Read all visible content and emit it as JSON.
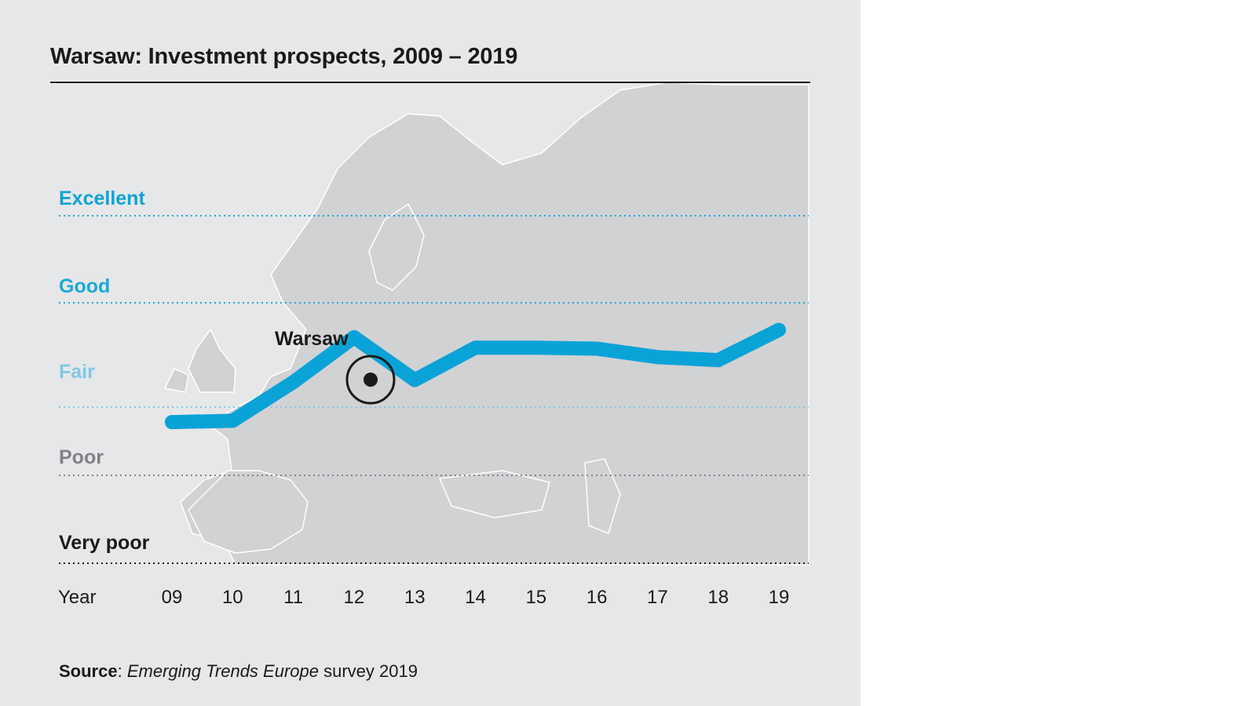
{
  "chart_data": {
    "type": "line",
    "title": "Warsaw: Investment prospects, 2009 – 2019",
    "xlabel": "Year",
    "x": [
      "09",
      "10",
      "11",
      "12",
      "13",
      "14",
      "15",
      "16",
      "17",
      "18",
      "19"
    ],
    "y_categories": [
      "Very poor",
      "Poor",
      "Fair",
      "Good",
      "Excellent"
    ],
    "ylim": [
      1,
      5
    ],
    "series": [
      {
        "name": "Warsaw",
        "values": [
          2.78,
          2.8,
          3.24,
          3.67,
          3.26,
          3.57,
          3.57,
          3.56,
          3.48,
          3.45,
          3.74
        ]
      }
    ],
    "annotation": "Warsaw",
    "colors": {
      "line": "#0aa3d8",
      "excellent": "#0aa3d8",
      "good": "#1aa9d9",
      "fair": "#7fc8e6",
      "poor": "#808285",
      "very_poor": "#1a1a1a",
      "background": "#e6e7e8",
      "land": "#d1d2d4"
    },
    "grid": true,
    "background_image": "europe-map"
  },
  "source": {
    "label": "Source",
    "publication": "Emerging Trends Europe",
    "suffix": "survey 2019"
  }
}
